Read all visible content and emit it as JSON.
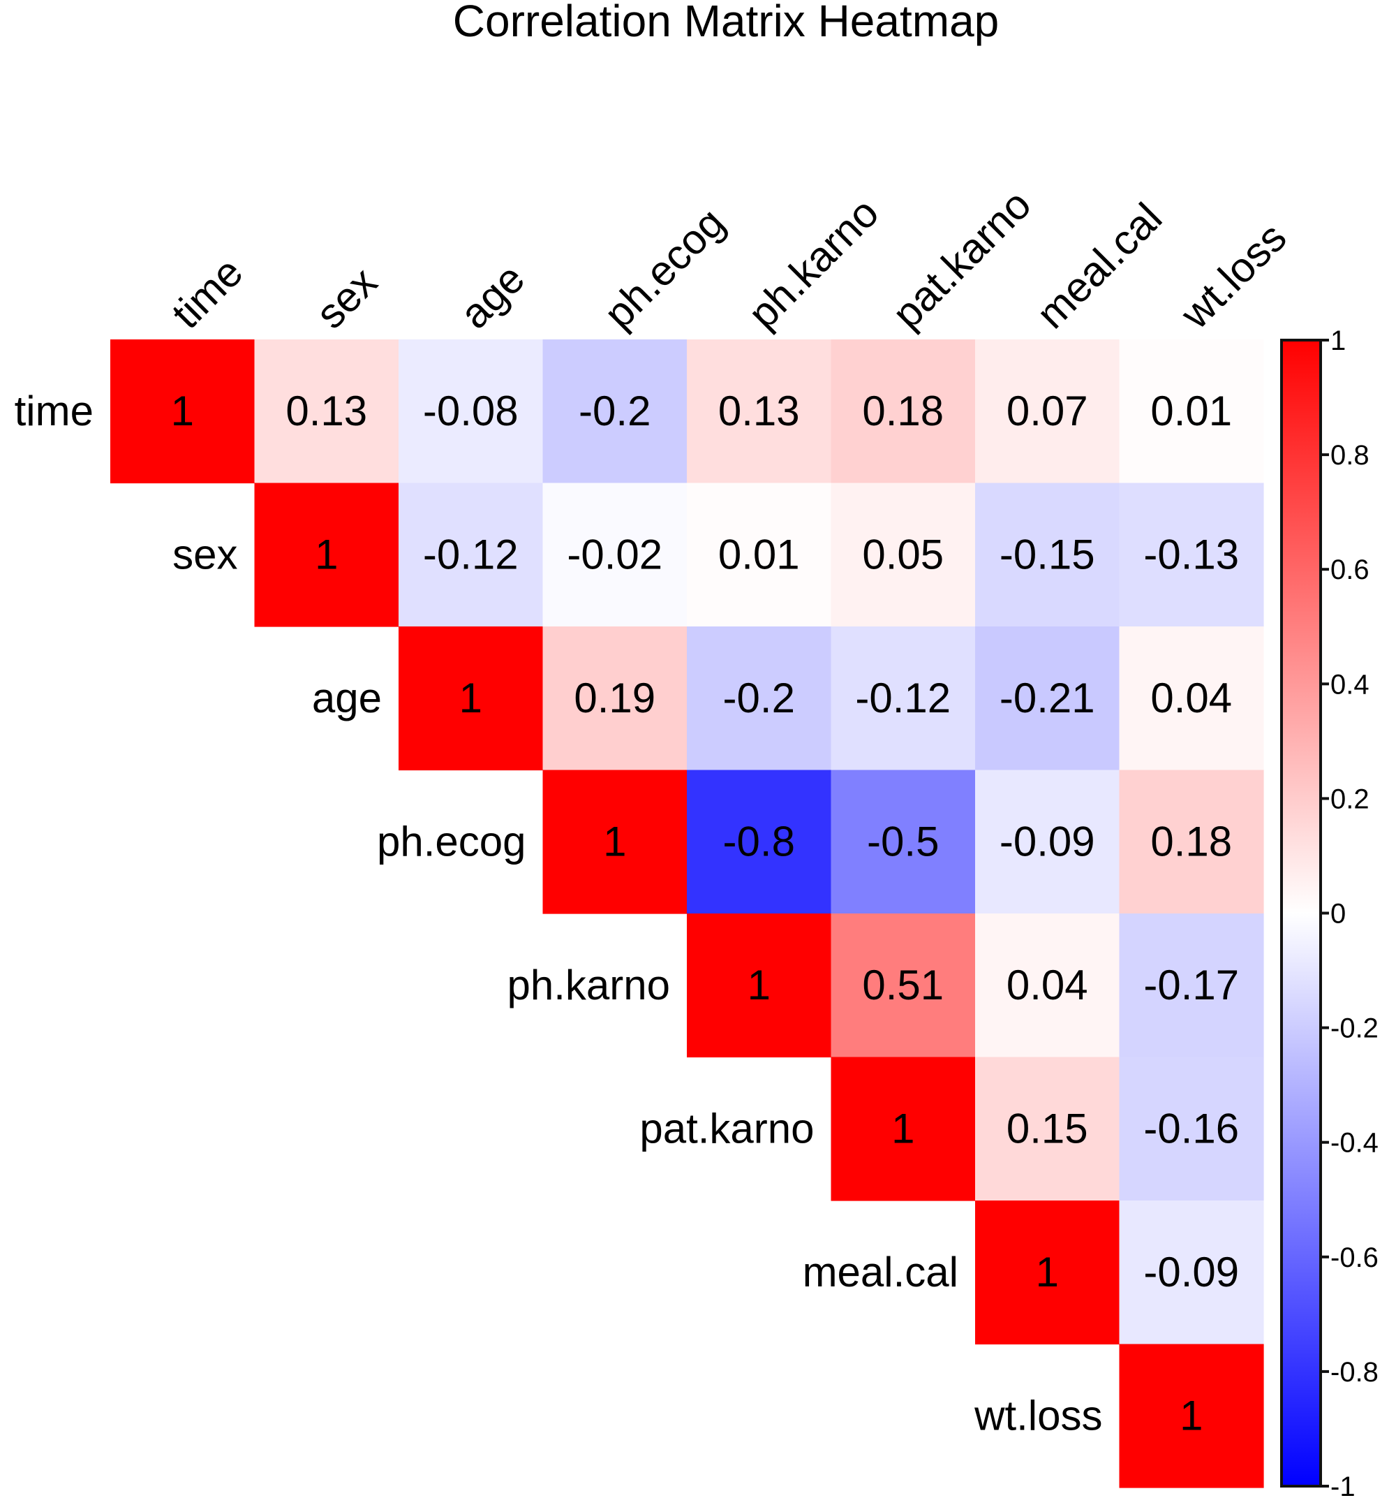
{
  "chart_data": {
    "type": "heatmap",
    "title": "Correlation Matrix Heatmap",
    "variables": [
      "time",
      "sex",
      "age",
      "ph.ecog",
      "ph.karno",
      "pat.karno",
      "meal.cal",
      "wt.loss"
    ],
    "layout": "upper-triangle",
    "matrix": [
      [
        1,
        0.13,
        -0.08,
        -0.2,
        0.13,
        0.18,
        0.07,
        0.01
      ],
      [
        null,
        1,
        -0.12,
        -0.02,
        0.01,
        0.05,
        -0.15,
        -0.13
      ],
      [
        null,
        null,
        1,
        0.19,
        -0.2,
        -0.12,
        -0.21,
        0.04
      ],
      [
        null,
        null,
        null,
        1,
        -0.8,
        -0.5,
        -0.09,
        0.18
      ],
      [
        null,
        null,
        null,
        null,
        1,
        0.51,
        0.04,
        -0.17
      ],
      [
        null,
        null,
        null,
        null,
        null,
        1,
        0.15,
        -0.16
      ],
      [
        null,
        null,
        null,
        null,
        null,
        null,
        1,
        -0.09
      ],
      [
        null,
        null,
        null,
        null,
        null,
        null,
        null,
        1
      ]
    ],
    "colorbar": {
      "range": [
        -1,
        1
      ],
      "ticks": [
        1,
        0.8,
        0.6,
        0.4,
        0.2,
        0,
        -0.2,
        -0.4,
        -0.6,
        -0.8,
        -1
      ],
      "tick_labels": [
        "1",
        "0.8",
        "0.6",
        "0.4",
        "0.2",
        "0",
        "-0.2",
        "-0.4",
        "-0.6",
        "-0.8",
        "-1"
      ],
      "colors": {
        "high": "#ff0000",
        "mid": "#ffffff",
        "low": "#0000ff"
      },
      "placement": "right"
    }
  }
}
